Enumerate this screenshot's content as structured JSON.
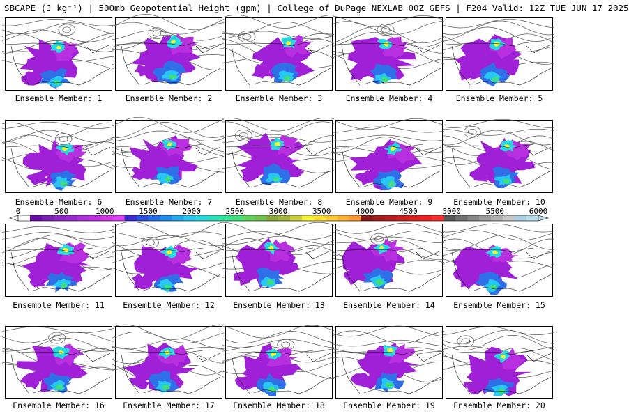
{
  "title": "SBCAPE (J kg⁻¹) | 500mb Geopotential Height (gpm) | College of DuPage NEXLAB 00Z GEFS | F204 Valid: 12Z TUE JUN 17 2025",
  "members": [
    {
      "label": "Ensemble Member: 1"
    },
    {
      "label": "Ensemble Member: 2"
    },
    {
      "label": "Ensemble Member: 3"
    },
    {
      "label": "Ensemble Member: 4"
    },
    {
      "label": "Ensemble Member: 5"
    },
    {
      "label": "Ensemble Member: 6"
    },
    {
      "label": "Ensemble Member: 7"
    },
    {
      "label": "Ensemble Member: 8"
    },
    {
      "label": "Ensemble Member: 9"
    },
    {
      "label": "Ensemble Member: 10"
    },
    {
      "label": "Ensemble Member: 11"
    },
    {
      "label": "Ensemble Member: 12"
    },
    {
      "label": "Ensemble Member: 13"
    },
    {
      "label": "Ensemble Member: 14"
    },
    {
      "label": "Ensemble Member: 15"
    },
    {
      "label": "Ensemble Member: 16"
    },
    {
      "label": "Ensemble Member: 17"
    },
    {
      "label": "Ensemble Member: 18"
    },
    {
      "label": "Ensemble Member: 19"
    },
    {
      "label": "Ensemble Member: 20"
    }
  ],
  "colorbar": {
    "ticks": [
      "0",
      "500",
      "1000",
      "1500",
      "2000",
      "2500",
      "3000",
      "3500",
      "4000",
      "4500",
      "5000",
      "5500",
      "6000"
    ],
    "colors": [
      "#ffffff",
      "#6a0dad",
      "#7b1fb8",
      "#8e24c9",
      "#9c27d4",
      "#b02ee0",
      "#c42fe6",
      "#d633e8",
      "#e040fb",
      "#3a2bd6",
      "#2a4fe0",
      "#1f6fe8",
      "#1e8df0",
      "#22a9f2",
      "#26c6f5",
      "#26d9e0",
      "#26e0c0",
      "#2ee59c",
      "#3fe07a",
      "#5cd65a",
      "#6fc24a",
      "#8aa83a",
      "#a3b53a",
      "#c8cc3a",
      "#f2f230",
      "#ffe030",
      "#ffc830",
      "#ffae30",
      "#ff9530",
      "#8b1a1a",
      "#a51c1c",
      "#b81e1e",
      "#cc1f1f",
      "#e01f1f",
      "#f02020",
      "#ff2a2a",
      "#5a5a5a",
      "#707070",
      "#858585",
      "#9a9a9a",
      "#afafaf",
      "#c4c4c4",
      "#a8cce0",
      "#b8dbe8"
    ]
  }
}
